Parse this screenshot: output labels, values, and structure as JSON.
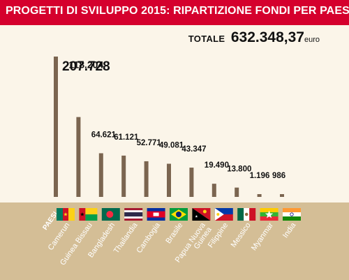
{
  "title": "PROGETTI DI SVILUPPO 2015: RIPARTIZIONE FONDI PER PAESE",
  "total": {
    "label": "TOTALE",
    "value": "632.348,37",
    "unit": "euro"
  },
  "colors": {
    "title_band": "#d5002d",
    "background": "#fbf5e9",
    "bottom_band": "#d4be96",
    "bar": "#7b6550",
    "category_label": "#ffffff"
  },
  "chart_data": {
    "type": "bar",
    "title": "PROGETTI DI SVILUPPO 2015: RIPARTIZIONE FONDI PER PAESE",
    "xlabel": "PAESI",
    "ylabel": "",
    "categories": [
      "Camerun",
      "Guinea Bissau",
      "Bangladesh",
      "Thailandia",
      "Cambogia",
      "Brasile",
      "Papua Nuova Guinea",
      "Filippine",
      "Messico",
      "Myanmar",
      "India"
    ],
    "category_labels": [
      [
        "Camerun"
      ],
      [
        "Guinea Bissau"
      ],
      [
        "Bangladesh"
      ],
      [
        "Thailandia"
      ],
      [
        "Cambogia"
      ],
      [
        "Brasile"
      ],
      [
        "Papua Nuova",
        "Guinea"
      ],
      [
        "Filippine"
      ],
      [
        "Messico"
      ],
      [
        "Myanmar"
      ],
      [
        "India"
      ]
    ],
    "values": [
      207728,
      118204,
      64621,
      61121,
      52771,
      49081,
      43347,
      19490,
      13800,
      1196,
      986
    ],
    "value_labels": [
      "207.728",
      "118.204",
      "64.621",
      "61.121",
      "52.771",
      "49.081",
      "43.347",
      "19.490",
      "13.800",
      "1.196",
      "986"
    ],
    "flag_icons": [
      "flag-cameroon-icon",
      "flag-guinea-bissau-icon",
      "flag-bangladesh-icon",
      "flag-thailand-icon",
      "flag-cambodia-icon",
      "flag-brazil-icon",
      "flag-papua-new-guinea-icon",
      "flag-philippines-icon",
      "flag-mexico-icon",
      "flag-myanmar-icon",
      "flag-india-icon"
    ],
    "ylim": [
      0,
      207728
    ],
    "grid": false,
    "legend": "none"
  }
}
